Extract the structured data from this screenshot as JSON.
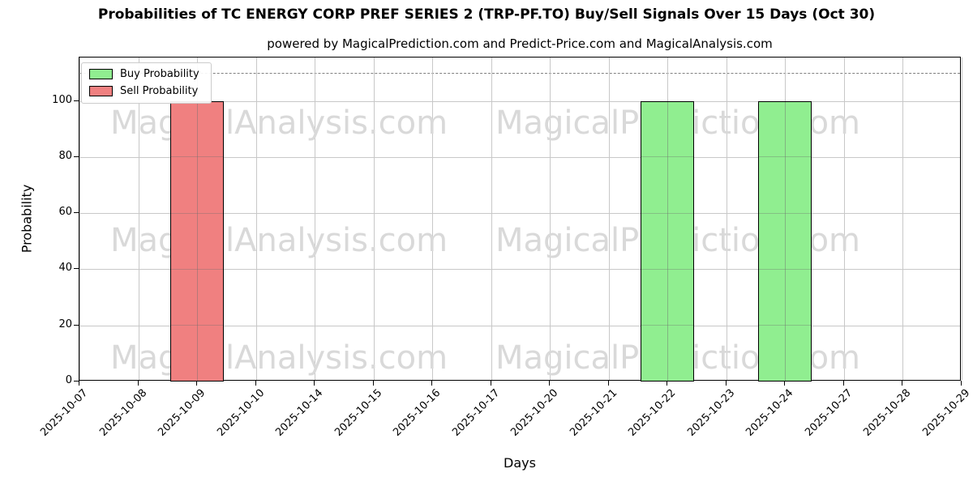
{
  "chart_data": {
    "type": "bar",
    "title": "Probabilities of TC ENERGY CORP PREF SERIES 2 (TRP-PF.TO) Buy/Sell Signals Over 15 Days (Oct 30)",
    "subtitle": "powered by MagicalPrediction.com and Predict-Price.com and MagicalAnalysis.com",
    "xlabel": "Days",
    "ylabel": "Probability",
    "categories": [
      "2025-10-07",
      "2025-10-08",
      "2025-10-09",
      "2025-10-10",
      "2025-10-14",
      "2025-10-15",
      "2025-10-16",
      "2025-10-17",
      "2025-10-20",
      "2025-10-21",
      "2025-10-22",
      "2025-10-23",
      "2025-10-24",
      "2025-10-27",
      "2025-10-28",
      "2025-10-29"
    ],
    "series": [
      {
        "name": "Buy Probability",
        "color": "#90ee90",
        "values": [
          0,
          0,
          0,
          0,
          0,
          0,
          0,
          0,
          0,
          0,
          100,
          0,
          100,
          0,
          0,
          0
        ]
      },
      {
        "name": "Sell Probability",
        "color": "#f08080",
        "values": [
          0,
          0,
          100,
          0,
          0,
          0,
          0,
          0,
          0,
          0,
          0,
          0,
          0,
          0,
          0,
          0
        ]
      }
    ],
    "ylim": [
      0,
      115.5
    ],
    "yticks": [
      0,
      20,
      40,
      60,
      80,
      100
    ],
    "threshold_line": {
      "value": 110,
      "style": "dashed",
      "color": "#808080"
    },
    "grid": true,
    "grid_color": "#c8c8c8",
    "bar_edge_color": "#000000",
    "legend_position": "upper left"
  },
  "legend": {
    "items": [
      {
        "label": "Buy Probability",
        "color": "#90ee90"
      },
      {
        "label": "Sell Probability",
        "color": "#f08080"
      }
    ]
  },
  "watermark": {
    "left_text": "MagicalAnalysis.com",
    "right_text": "MagicalPrediction.com",
    "color": "#d9d9d9"
  }
}
